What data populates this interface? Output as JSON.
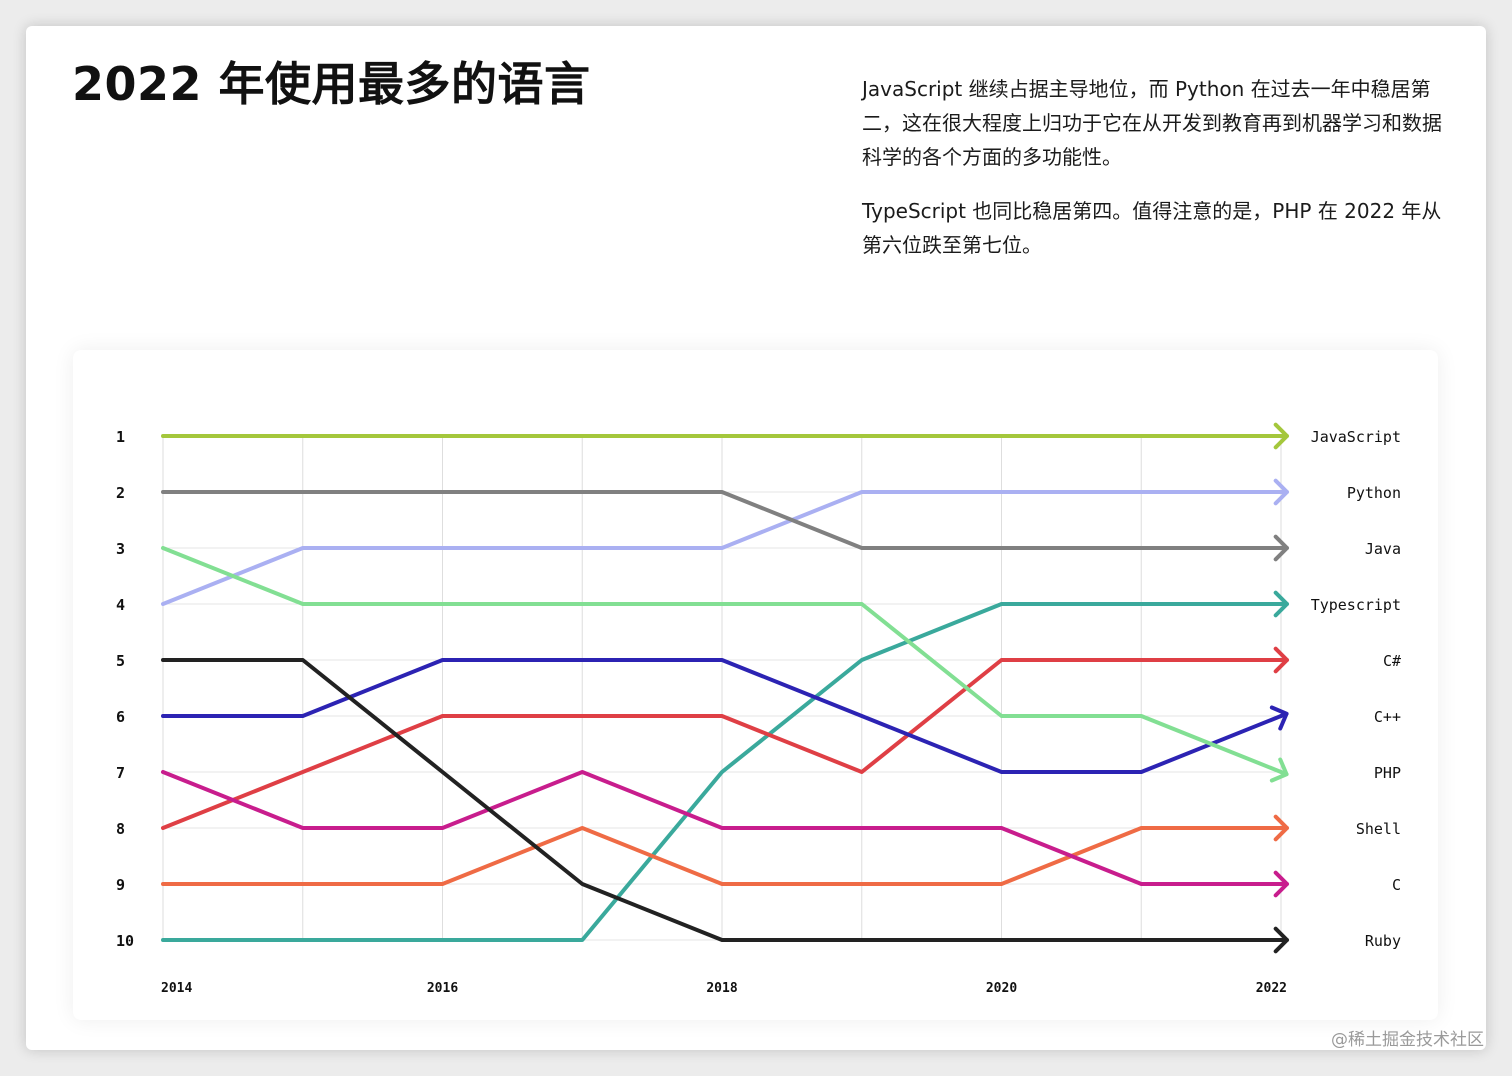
{
  "title": "2022 年使用最多的语言",
  "description": [
    "JavaScript 继续占据主导地位，而 Python 在过去一年中稳居第二，这在很大程度上归功于它在从开发到教育再到机器学习和数据科学的各个方面的多功能性。",
    "TypeScript 也同比稳居第四。值得注意的是，PHP 在 2022 年从第六位跌至第七位。"
  ],
  "watermark": "@稀土掘金技术社区",
  "chart_data": {
    "type": "line",
    "subtype": "bump",
    "x": [
      2014,
      2015,
      2016,
      2017,
      2018,
      2019,
      2020,
      2021,
      2022
    ],
    "x_tick_labels": [
      "2014",
      "2016",
      "2018",
      "2020",
      "2022"
    ],
    "x_tick_values": [
      2014,
      2016,
      2018,
      2020,
      2022
    ],
    "y_tick_labels": [
      "1",
      "2",
      "3",
      "4",
      "5",
      "6",
      "7",
      "8",
      "9",
      "10"
    ],
    "ylim": [
      1,
      10
    ],
    "y_inverted": true,
    "grid": "vertical and horizontal",
    "legend": "series names at right end of lines",
    "series": [
      {
        "name": "JavaScript",
        "color": "#a4c73c",
        "values": [
          1,
          1,
          1,
          1,
          1,
          1,
          1,
          1,
          1
        ]
      },
      {
        "name": "Python",
        "color": "#aab0f2",
        "values": [
          4,
          3,
          3,
          3,
          3,
          2,
          2,
          2,
          2
        ]
      },
      {
        "name": "Java",
        "color": "#808080",
        "values": [
          2,
          2,
          2,
          2,
          2,
          3,
          3,
          3,
          3
        ]
      },
      {
        "name": "Typescript",
        "color": "#3aa99c",
        "values": [
          10,
          10,
          10,
          10,
          7,
          5,
          4,
          4,
          4
        ]
      },
      {
        "name": "C#",
        "color": "#df3f45",
        "values": [
          8,
          7,
          6,
          6,
          6,
          7,
          5,
          5,
          5
        ]
      },
      {
        "name": "C++",
        "color": "#2c23b3",
        "values": [
          6,
          6,
          5,
          5,
          5,
          6,
          7,
          7,
          6
        ]
      },
      {
        "name": "PHP",
        "color": "#82df93",
        "values": [
          3,
          4,
          4,
          4,
          4,
          4,
          6,
          6,
          7
        ]
      },
      {
        "name": "Shell",
        "color": "#ef6b45",
        "values": [
          9,
          9,
          9,
          8,
          9,
          9,
          9,
          8,
          8
        ]
      },
      {
        "name": "C",
        "color": "#c81d8d",
        "values": [
          7,
          8,
          8,
          7,
          8,
          8,
          8,
          9,
          9
        ]
      },
      {
        "name": "Ruby",
        "color": "#222222",
        "values": [
          5,
          5,
          7,
          9,
          10,
          10,
          10,
          10,
          10
        ]
      }
    ]
  }
}
